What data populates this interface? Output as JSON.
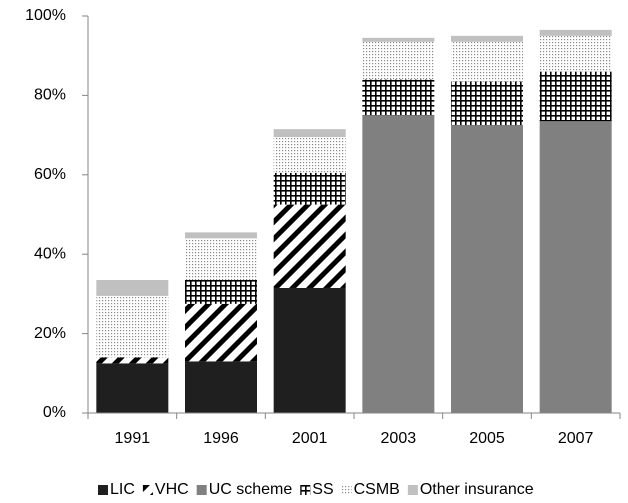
{
  "chart_data": {
    "type": "stacked_bar",
    "categories": [
      "1991",
      "1996",
      "2001",
      "2003",
      "2005",
      "2007"
    ],
    "series": [
      {
        "name": "LIC",
        "color": "#1f1f1f",
        "pattern": "solid",
        "values": [
          12.5,
          13,
          31.5,
          null,
          null,
          null
        ]
      },
      {
        "name": "VHC",
        "color": "#000000",
        "pattern": "diagonal",
        "values": [
          1.5,
          14.5,
          21,
          null,
          null,
          null
        ]
      },
      {
        "name": "UC scheme",
        "color": "#808080",
        "pattern": "solid",
        "values": [
          null,
          null,
          null,
          75,
          72.5,
          73.5
        ]
      },
      {
        "name": "SS",
        "color": "#000000",
        "pattern": "grid",
        "values": [
          null,
          6,
          8,
          9,
          11,
          12.5
        ]
      },
      {
        "name": "CSMB",
        "color": "#9a9a9a",
        "pattern": "dots",
        "values": [
          15.5,
          10.5,
          9,
          9.5,
          10,
          9
        ]
      },
      {
        "name": "Other insurance",
        "color": "#c0c0c0",
        "pattern": "solid",
        "values": [
          4,
          1.5,
          2,
          1,
          1.5,
          1.5
        ]
      }
    ],
    "ylim": [
      0,
      100
    ],
    "yticks": [
      {
        "value": 0,
        "label": "0%"
      },
      {
        "value": 20,
        "label": "20%"
      },
      {
        "value": 40,
        "label": "40%"
      },
      {
        "value": 60,
        "label": "60%"
      },
      {
        "value": 80,
        "label": "80%"
      },
      {
        "value": 100,
        "label": "100%"
      }
    ],
    "grid": false,
    "legend": "bottom"
  }
}
